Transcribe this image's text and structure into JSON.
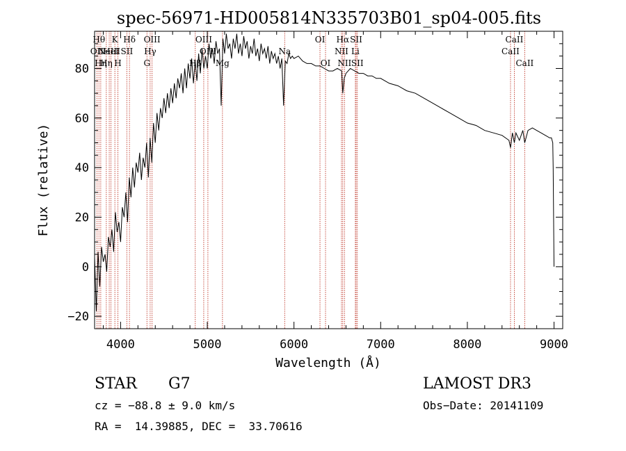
{
  "chart_data": {
    "type": "line",
    "title": "spec-56971-HD005814N335703B01_sp04-005.fits",
    "xlabel": "Wavelength (Å)",
    "ylabel": "Flux (relative)",
    "xlim": [
      3700,
      9100
    ],
    "ylim": [
      -25,
      95
    ],
    "x_ticks": [
      4000,
      5000,
      6000,
      7000,
      8000,
      9000
    ],
    "x_tick_labels": [
      "4000",
      "5000",
      "6000",
      "7000",
      "8000",
      "9000"
    ],
    "y_ticks": [
      -20,
      0,
      20,
      40,
      60,
      80
    ],
    "y_tick_labels": [
      "-20",
      "0",
      "20",
      "40",
      "60",
      "80"
    ],
    "series": [
      {
        "name": "spectrum",
        "x": [
          3700,
          3720,
          3740,
          3760,
          3780,
          3800,
          3820,
          3840,
          3860,
          3880,
          3900,
          3920,
          3940,
          3960,
          3980,
          4000,
          4020,
          4040,
          4060,
          4080,
          4100,
          4120,
          4140,
          4160,
          4180,
          4200,
          4220,
          4240,
          4260,
          4280,
          4300,
          4320,
          4340,
          4360,
          4380,
          4400,
          4420,
          4440,
          4460,
          4480,
          4500,
          4520,
          4540,
          4560,
          4580,
          4600,
          4620,
          4640,
          4660,
          4680,
          4700,
          4720,
          4740,
          4760,
          4780,
          4800,
          4820,
          4840,
          4860,
          4880,
          4900,
          4920,
          4940,
          4960,
          4980,
          5000,
          5020,
          5040,
          5060,
          5080,
          5100,
          5120,
          5140,
          5160,
          5180,
          5200,
          5220,
          5240,
          5260,
          5280,
          5300,
          5320,
          5340,
          5360,
          5380,
          5400,
          5420,
          5440,
          5460,
          5480,
          5500,
          5520,
          5540,
          5560,
          5580,
          5600,
          5620,
          5640,
          5660,
          5680,
          5700,
          5720,
          5740,
          5760,
          5780,
          5800,
          5820,
          5840,
          5860,
          5880,
          5900,
          5920,
          5940,
          5960,
          5980,
          6000,
          6050,
          6100,
          6150,
          6200,
          6250,
          6300,
          6350,
          6400,
          6450,
          6500,
          6550,
          6563,
          6580,
          6600,
          6650,
          6700,
          6750,
          6800,
          6850,
          6900,
          6950,
          7000,
          7100,
          7200,
          7300,
          7400,
          7500,
          7600,
          7700,
          7800,
          7900,
          8000,
          8100,
          8200,
          8300,
          8400,
          8480,
          8498,
          8520,
          8542,
          8560,
          8600,
          8640,
          8662,
          8700,
          8750,
          8800,
          8850,
          8900,
          8950,
          8970,
          8985,
          8990,
          8995,
          9000
        ],
        "y": [
          4,
          -18,
          6,
          -8,
          8,
          2,
          5,
          -2,
          12,
          8,
          15,
          6,
          22,
          14,
          18,
          10,
          24,
          20,
          30,
          18,
          36,
          28,
          40,
          32,
          42,
          38,
          46,
          35,
          44,
          40,
          50,
          36,
          52,
          42,
          58,
          50,
          62,
          55,
          64,
          60,
          68,
          62,
          70,
          64,
          72,
          66,
          74,
          68,
          76,
          72,
          78,
          70,
          80,
          72,
          82,
          76,
          84,
          74,
          83,
          75,
          86,
          78,
          88,
          80,
          85,
          80,
          90,
          84,
          88,
          82,
          91,
          86,
          88,
          65,
          92,
          86,
          94,
          88,
          90,
          84,
          92,
          88,
          94,
          86,
          90,
          85,
          93,
          88,
          91,
          84,
          89,
          86,
          92,
          85,
          88,
          83,
          90,
          86,
          88,
          84,
          89,
          82,
          87,
          84,
          86,
          82,
          85,
          80,
          84,
          65,
          83,
          82,
          86,
          84,
          85,
          84,
          85,
          83,
          82,
          82,
          81,
          81,
          80,
          79,
          79,
          80,
          79,
          70,
          76,
          78,
          80,
          79,
          78,
          78,
          77,
          77,
          76,
          76,
          74,
          73,
          71,
          70,
          68,
          66,
          64,
          62,
          60,
          58,
          57,
          55,
          54,
          53,
          51,
          48,
          54,
          50,
          54,
          51,
          55,
          50,
          55,
          56,
          55,
          54,
          53,
          52,
          52,
          50,
          40,
          20,
          0
        ]
      }
    ],
    "line_markers": [
      {
        "wavelength": 3727,
        "label": "OII",
        "row": 2
      },
      {
        "wavelength": 3750,
        "label": "Hθ",
        "row": 1
      },
      {
        "wavelength": 3771,
        "label": "Hη",
        "row": 3
      },
      {
        "wavelength": 3835,
        "label": "Hη",
        "row": 3
      },
      {
        "wavelength": 3869,
        "label": "NeIII",
        "row": 2
      },
      {
        "wavelength": 3889,
        "label": "HeI",
        "row": 2
      },
      {
        "wavelength": 3934,
        "label": "K",
        "row": 1
      },
      {
        "wavelength": 3969,
        "label": "H",
        "row": 3
      },
      {
        "wavelength": 4072,
        "label": "SII",
        "row": 2
      },
      {
        "wavelength": 4102,
        "label": "Hδ",
        "row": 1
      },
      {
        "wavelength": 4304,
        "label": "G",
        "row": 3
      },
      {
        "wavelength": 4341,
        "label": "Hγ",
        "row": 2
      },
      {
        "wavelength": 4363,
        "label": "OIII",
        "row": 1
      },
      {
        "wavelength": 4861,
        "label": "Hβ",
        "row": 3
      },
      {
        "wavelength": 4959,
        "label": "OIII",
        "row": 1
      },
      {
        "wavelength": 5007,
        "label": "OIII",
        "row": 2
      },
      {
        "wavelength": 5175,
        "label": "Mg",
        "row": 3
      },
      {
        "wavelength": 5893,
        "label": "Na",
        "row": 2
      },
      {
        "wavelength": 6300,
        "label": "OI",
        "row": 1
      },
      {
        "wavelength": 6364,
        "label": "OI",
        "row": 3
      },
      {
        "wavelength": 6548,
        "label": "NII",
        "row": 2
      },
      {
        "wavelength": 6563,
        "label": "Hα",
        "row": 1
      },
      {
        "wavelength": 6583,
        "label": "NII",
        "row": 3
      },
      {
        "wavelength": 6708,
        "label": "Li",
        "row": 2
      },
      {
        "wavelength": 6717,
        "label": "SII",
        "row": 1
      },
      {
        "wavelength": 6731,
        "label": "SII",
        "row": 3
      },
      {
        "wavelength": 8498,
        "label": "CaII",
        "row": 2
      },
      {
        "wavelength": 8542,
        "label": "CaII",
        "row": 1
      },
      {
        "wavelength": 8662,
        "label": "CaII",
        "row": 3
      }
    ]
  },
  "info": {
    "class": "STAR",
    "subclass": "G7",
    "survey": "LAMOST DR3",
    "cz": "cz = −88.8 ± 9.0 km/s",
    "obs_date": "Obs−Date: 20141109",
    "coords": "RA =  14.39885, DEC =  33.70616"
  }
}
